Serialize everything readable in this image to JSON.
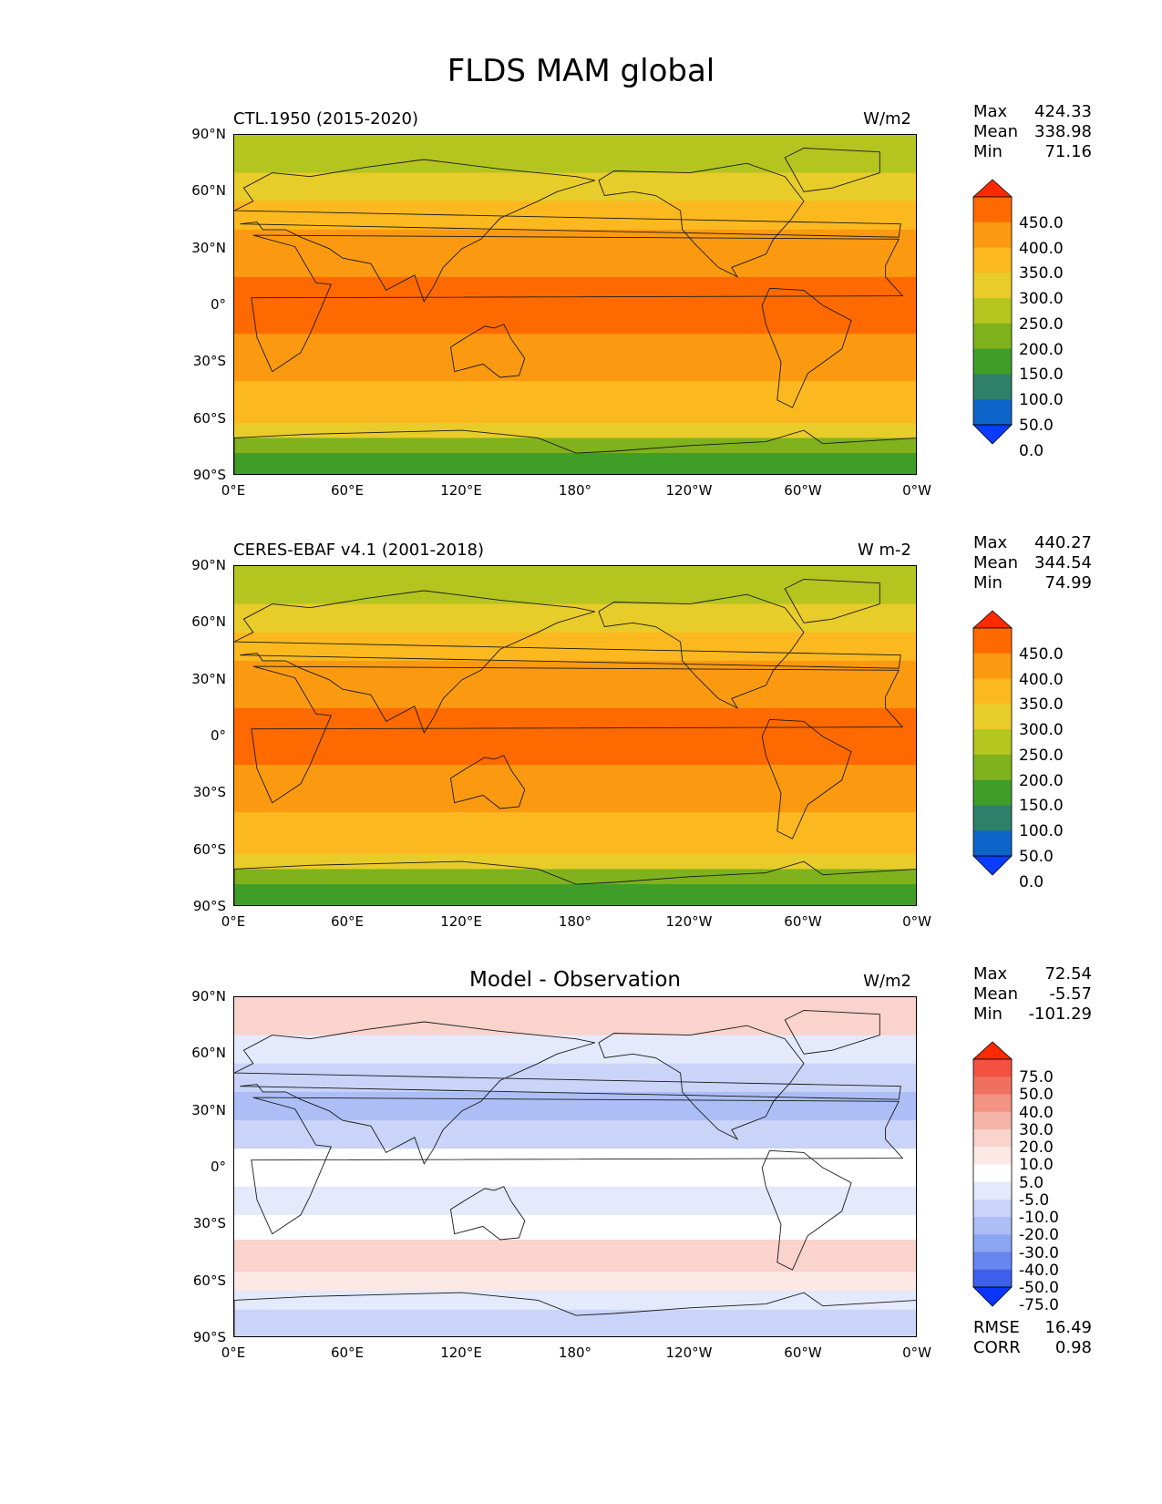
{
  "title": "FLDS MAM global",
  "lat_labels": [
    "90°N",
    "60°N",
    "30°N",
    "0°",
    "30°S",
    "60°S",
    "90°S"
  ],
  "lon_labels": [
    "0°E",
    "60°E",
    "120°E",
    "180°",
    "120°W",
    "60°W",
    "0°W"
  ],
  "panels": [
    {
      "left_title": "CTL.1950 (2015-2020)",
      "right_title": "W/m2",
      "stats": {
        "max_label": "Max",
        "max": "424.33",
        "mean_label": "Mean",
        "mean": "338.98",
        "min_label": "Min",
        "min": "71.16"
      }
    },
    {
      "left_title": "CERES-EBAF v4.1 (2001-2018)",
      "right_title": "W m-2",
      "stats": {
        "max_label": "Max",
        "max": "440.27",
        "mean_label": "Mean",
        "mean": "344.54",
        "min_label": "Min",
        "min": "74.99"
      }
    },
    {
      "center_title": "Model - Observation",
      "right_title": "W/m2",
      "stats": {
        "max_label": "Max",
        "max": "72.54",
        "mean_label": "Mean",
        "mean": "-5.57",
        "min_label": "Min",
        "min": "-101.29"
      },
      "metrics": {
        "rmse_label": "RMSE",
        "rmse": "16.49",
        "corr_label": "CORR",
        "corr": "0.98"
      }
    }
  ],
  "colorbar_abs": {
    "ticks": [
      "450.0",
      "400.0",
      "350.0",
      "300.0",
      "250.0",
      "200.0",
      "150.0",
      "100.0",
      "50.0",
      "0.0"
    ],
    "colors": [
      "#ff2a00",
      "#ff6a00",
      "#fb9a10",
      "#fcb91f",
      "#e8cc2a",
      "#b4c51f",
      "#7fb21c",
      "#3f9e28",
      "#2f8068",
      "#0d64c9",
      "#0a3cff"
    ]
  },
  "colorbar_diff": {
    "ticks": [
      "75.0",
      "50.0",
      "40.0",
      "30.0",
      "20.0",
      "10.0",
      "5.0",
      "-5.0",
      "-10.0",
      "-20.0",
      "-30.0",
      "-40.0",
      "-50.0",
      "-75.0"
    ],
    "colors": [
      "#ff2a00",
      "#f2523f",
      "#f07060",
      "#f39383",
      "#f6b4a8",
      "#f9d3cc",
      "#fce9e5",
      "#ffffff",
      "#e4e9fb",
      "#c9d4f8",
      "#acbef5",
      "#8aa5f2",
      "#6786ef",
      "#3f60ee",
      "#0a35ff"
    ]
  },
  "chart_data": [
    {
      "type": "heatmap",
      "title": "CTL.1950 (2015-2020)",
      "units": "W/m2",
      "x_ticks": [
        "0°E",
        "60°E",
        "120°E",
        "180°",
        "120°W",
        "60°W",
        "0°W"
      ],
      "y_ticks": [
        "90°N",
        "60°N",
        "30°N",
        "0°",
        "30°S",
        "60°S",
        "90°S"
      ],
      "levels": [
        0,
        50,
        100,
        150,
        200,
        250,
        300,
        350,
        400,
        450
      ],
      "zonal_bands": [
        {
          "lat": [
            70,
            90
          ],
          "value": 220
        },
        {
          "lat": [
            55,
            70
          ],
          "value": 260
        },
        {
          "lat": [
            40,
            55
          ],
          "value": 310
        },
        {
          "lat": [
            25,
            40
          ],
          "value": 360
        },
        {
          "lat": [
            15,
            25
          ],
          "value": 380
        },
        {
          "lat": [
            -15,
            15
          ],
          "value": 410
        },
        {
          "lat": [
            -25,
            -15
          ],
          "value": 385
        },
        {
          "lat": [
            -40,
            -25
          ],
          "value": 360
        },
        {
          "lat": [
            -52,
            -40
          ],
          "value": 330
        },
        {
          "lat": [
            -62,
            -52
          ],
          "value": 300
        },
        {
          "lat": [
            -70,
            -62
          ],
          "value": 260
        },
        {
          "lat": [
            -78,
            -70
          ],
          "value": 180
        },
        {
          "lat": [
            -90,
            -78
          ],
          "value": 120
        }
      ],
      "max": 424.33,
      "mean": 338.98,
      "min": 71.16
    },
    {
      "type": "heatmap",
      "title": "CERES-EBAF v4.1 (2001-2018)",
      "units": "W m-2",
      "x_ticks": [
        "0°E",
        "60°E",
        "120°E",
        "180°",
        "120°W",
        "60°W",
        "0°W"
      ],
      "y_ticks": [
        "90°N",
        "60°N",
        "30°N",
        "0°",
        "30°S",
        "60°S",
        "90°S"
      ],
      "levels": [
        0,
        50,
        100,
        150,
        200,
        250,
        300,
        350,
        400,
        450
      ],
      "zonal_bands": [
        {
          "lat": [
            70,
            90
          ],
          "value": 215
        },
        {
          "lat": [
            55,
            70
          ],
          "value": 265
        },
        {
          "lat": [
            40,
            55
          ],
          "value": 315
        },
        {
          "lat": [
            25,
            40
          ],
          "value": 365
        },
        {
          "lat": [
            15,
            25
          ],
          "value": 390
        },
        {
          "lat": [
            -15,
            15
          ],
          "value": 415
        },
        {
          "lat": [
            -25,
            -15
          ],
          "value": 390
        },
        {
          "lat": [
            -40,
            -25
          ],
          "value": 365
        },
        {
          "lat": [
            -52,
            -40
          ],
          "value": 335
        },
        {
          "lat": [
            -62,
            -52
          ],
          "value": 305
        },
        {
          "lat": [
            -70,
            -62
          ],
          "value": 265
        },
        {
          "lat": [
            -78,
            -70
          ],
          "value": 175
        },
        {
          "lat": [
            -90,
            -78
          ],
          "value": 115
        }
      ],
      "max": 440.27,
      "mean": 344.54,
      "min": 74.99
    },
    {
      "type": "heatmap",
      "title": "Model - Observation",
      "units": "W/m2",
      "x_ticks": [
        "0°E",
        "60°E",
        "120°E",
        "180°",
        "120°W",
        "60°W",
        "0°W"
      ],
      "y_ticks": [
        "90°N",
        "60°N",
        "30°N",
        "0°",
        "30°S",
        "60°S",
        "90°S"
      ],
      "levels": [
        -75,
        -50,
        -40,
        -30,
        -20,
        -10,
        -5,
        5,
        10,
        20,
        30,
        40,
        50,
        75
      ],
      "zonal_bands": [
        {
          "lat": [
            70,
            90
          ],
          "value": 12
        },
        {
          "lat": [
            55,
            70
          ],
          "value": -8
        },
        {
          "lat": [
            40,
            55
          ],
          "value": -15
        },
        {
          "lat": [
            25,
            40
          ],
          "value": -22
        },
        {
          "lat": [
            10,
            25
          ],
          "value": -12
        },
        {
          "lat": [
            -10,
            10
          ],
          "value": -3
        },
        {
          "lat": [
            -25,
            -10
          ],
          "value": -6
        },
        {
          "lat": [
            -38,
            -25
          ],
          "value": 3
        },
        {
          "lat": [
            -55,
            -38
          ],
          "value": 14
        },
        {
          "lat": [
            -65,
            -55
          ],
          "value": 8
        },
        {
          "lat": [
            -75,
            -65
          ],
          "value": -8
        },
        {
          "lat": [
            -90,
            -75
          ],
          "value": -12
        }
      ],
      "max": 72.54,
      "mean": -5.57,
      "min": -101.29,
      "rmse": 16.49,
      "corr": 0.98
    }
  ]
}
